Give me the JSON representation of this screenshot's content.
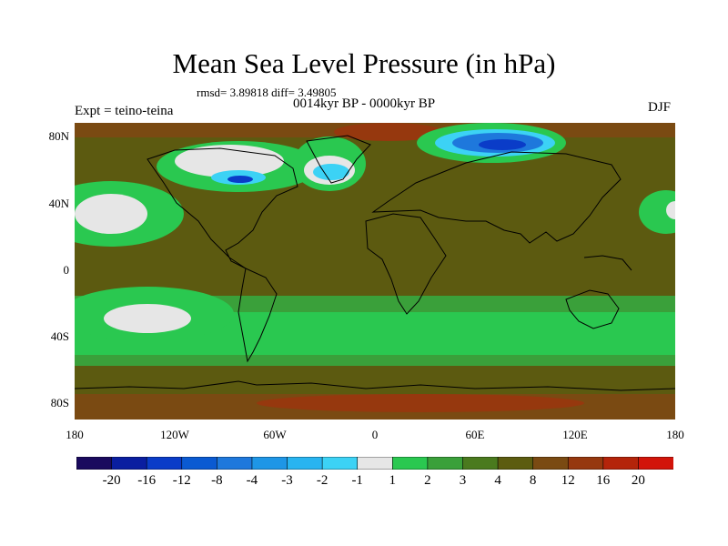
{
  "title": "Mean Sea Level Pressure (in hPa)",
  "stats": "rmsd= 3.89818 diff= 3.49805",
  "subtitle": "0014kyr BP - 0000kyr BP",
  "experiment": "Expt = teino-teina",
  "season": "DJF",
  "axes": {
    "y_ticks": [
      "80N",
      "40N",
      "0",
      "40S",
      "80S"
    ],
    "x_ticks": [
      "180",
      "120W",
      "60W",
      "0",
      "60E",
      "120E",
      "180"
    ]
  },
  "colorbar": {
    "colors": [
      "#1a0a5e",
      "#0a1ea0",
      "#0a3cc8",
      "#0a5ad2",
      "#1e78dc",
      "#1e96e6",
      "#28b4f0",
      "#3cd2f5",
      "#e6e6e6",
      "#2ac850",
      "#3aa03a",
      "#4a7a1e",
      "#5c5c10",
      "#7a4a12",
      "#96380e",
      "#b4240a",
      "#d2140a"
    ],
    "labels": [
      "-20",
      "-16",
      "-12",
      "-8",
      "-4",
      "-3",
      "-2",
      "-1",
      "1",
      "2",
      "3",
      "4",
      "8",
      "12",
      "16",
      "20"
    ]
  },
  "legend_colors": {
    "land_base": "#5c5a10",
    "green_band": "#2ac850",
    "mid_green": "#3aa03a",
    "red_band": "#96380e",
    "light": "#e6e6e6",
    "blue": "#1e78dc",
    "coast": "#000000"
  }
}
